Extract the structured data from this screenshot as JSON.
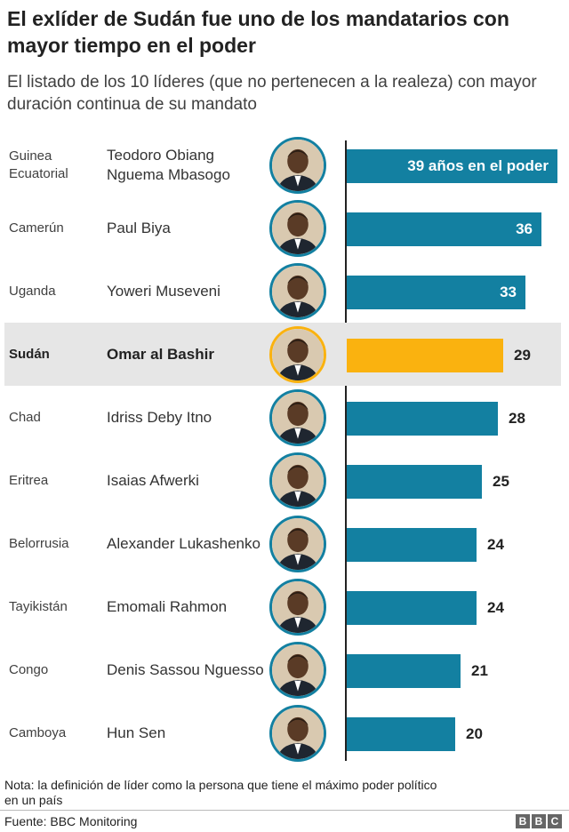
{
  "title": "El exlíder de Sudán fue uno de los mandatarios con mayor tiempo en el poder",
  "subtitle": "El listado de los 10 líderes (que no pertenecen a la realeza) con mayor duración continua de su mandato",
  "colors": {
    "bar": "#1380a1",
    "highlight_bar": "#fab20f",
    "highlight_row": "#e6e6e6"
  },
  "chart_data": {
    "type": "bar",
    "orientation": "horizontal",
    "xlim": [
      0,
      39
    ],
    "categories": [
      "Guinea Ecuatorial",
      "Camerún",
      "Uganda",
      "Sudán",
      "Chad",
      "Eritrea",
      "Belorrusia",
      "Tayikistán",
      "Congo",
      "Camboya"
    ],
    "leaders": [
      "Teodoro Obiang Nguema Mbasogo",
      "Paul Biya",
      "Yoweri Museveni",
      "Omar al Bashir",
      "Idriss Deby Itno",
      "Isaias Afwerki",
      "Alexander Lukashenko",
      "Emomali Rahmon",
      "Denis Sassou Nguesso",
      "Hun Sen"
    ],
    "values": [
      39,
      36,
      33,
      29,
      28,
      25,
      24,
      24,
      21,
      20
    ],
    "value_labels": [
      "39 años en el poder",
      "36",
      "33",
      "29",
      "28",
      "25",
      "24",
      "24",
      "21",
      "20"
    ],
    "highlight": "Sudán",
    "portrait_icon": "person-portrait-icon"
  },
  "note": "Nota: la definición de líder como la persona que tiene el máximo poder político en un país",
  "source": "Fuente: BBC Monitoring",
  "logo": [
    "B",
    "B",
    "C"
  ]
}
